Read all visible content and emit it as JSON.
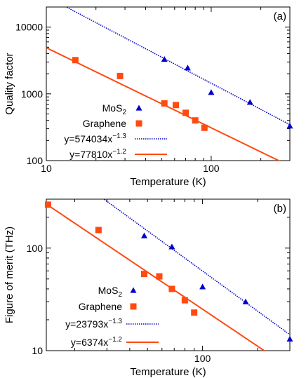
{
  "colors": {
    "mos2": "#0000cc",
    "graphene": "#ff4a10",
    "axis": "#000000"
  },
  "chart_data": [
    {
      "type": "scatter",
      "panel_label": "(a)",
      "xlabel": "Temperature (K)",
      "ylabel": "Quality factor",
      "xscale": "log",
      "yscale": "log",
      "xlim": [
        10,
        300
      ],
      "ylim": [
        100,
        20000
      ],
      "xticks": [
        {
          "value": 10,
          "label": "10"
        },
        {
          "value": 100,
          "label": "100"
        }
      ],
      "yticks": [
        {
          "value": 100,
          "label": "100"
        },
        {
          "value": 1000,
          "label": "1000"
        },
        {
          "value": 10000,
          "label": "10000"
        }
      ],
      "legend_position": "center-right",
      "series": [
        {
          "name": "MoS",
          "name_sub": "2",
          "marker": "triangle",
          "color": "#0000cc",
          "x": [
            52,
            72,
            100,
            172,
            300
          ],
          "y": [
            3300,
            2450,
            1050,
            750,
            330
          ]
        },
        {
          "name": "Graphene",
          "marker": "square",
          "color": "#ff4a10",
          "x": [
            15,
            28,
            52,
            61,
            70,
            80,
            91
          ],
          "y": [
            3200,
            1850,
            720,
            680,
            520,
            400,
            310
          ]
        }
      ],
      "fits": [
        {
          "name_base": "y=574034x",
          "name_exp": "−1.3",
          "coef": 574034,
          "exp": -1.3,
          "style": "dotted",
          "color": "#0000cc"
        },
        {
          "name_base": "y=77810x",
          "name_exp": "−1.2",
          "coef": 77810,
          "exp": -1.2,
          "style": "solid",
          "color": "#ff4a10"
        }
      ]
    },
    {
      "type": "scatter",
      "panel_label": "(b)",
      "xlabel": "Temperature (K)",
      "ylabel": "Figure of merit (THz)",
      "xscale": "log",
      "yscale": "log",
      "xlim": [
        14,
        300
      ],
      "ylim": [
        10,
        300
      ],
      "xticks": [
        {
          "value": 100,
          "label": "100"
        }
      ],
      "yticks": [
        {
          "value": 10,
          "label": "10"
        },
        {
          "value": 100,
          "label": "100"
        }
      ],
      "legend_position": "bottom-left",
      "series": [
        {
          "name": "MoS",
          "name_sub": "2",
          "marker": "triangle",
          "color": "#0000cc",
          "x": [
            48,
            68,
            100,
            172,
            300
          ],
          "y": [
            132,
            103,
            42,
            30,
            13
          ]
        },
        {
          "name": "Graphene",
          "marker": "square",
          "color": "#ff4a10",
          "x": [
            14.3,
            27,
            48,
            58,
            68,
            80,
            90
          ],
          "y": [
            265,
            150,
            56,
            53,
            40,
            31,
            23.5
          ]
        }
      ],
      "fits": [
        {
          "name_base": "y=23793x",
          "name_exp": "−1.3",
          "coef": 23793,
          "exp": -1.3,
          "style": "dotted",
          "color": "#0000cc"
        },
        {
          "name_base": "y=6374x",
          "name_exp": "−1.2",
          "coef": 6374,
          "exp": -1.2,
          "style": "solid",
          "color": "#ff4a10"
        }
      ]
    }
  ]
}
